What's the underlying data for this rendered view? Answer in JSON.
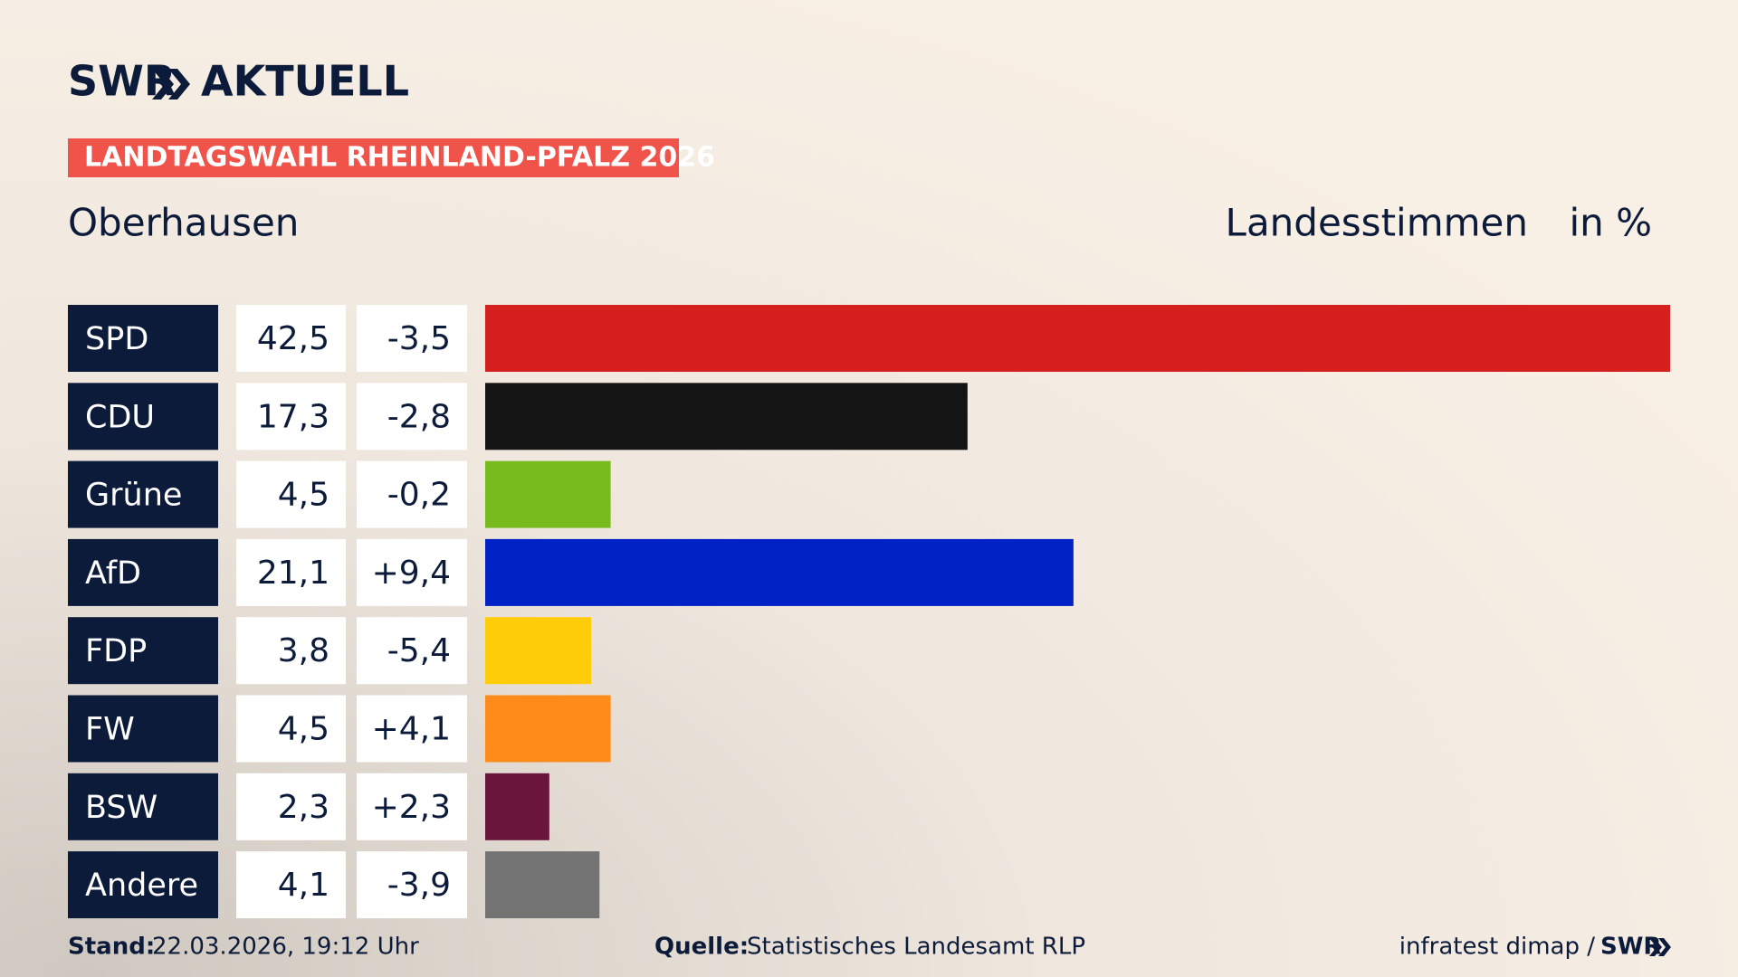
{
  "header": {
    "logo": "SWR",
    "brand": "AKTUELL"
  },
  "chart_data": {
    "type": "bar",
    "orientation": "horizontal",
    "title": "LANDTAGSWAHL RHEINLAND-PFALZ 2026",
    "subtitle": "Oberhausen",
    "measure": "Landesstimmen",
    "unit": "in %",
    "categories": [
      "SPD",
      "CDU",
      "Grüne",
      "AfD",
      "FDP",
      "FW",
      "BSW",
      "Andere"
    ],
    "values": [
      42.5,
      17.3,
      4.5,
      21.1,
      3.8,
      4.5,
      2.3,
      4.1
    ],
    "value_labels": [
      "42,5",
      "17,3",
      "4,5",
      "21,1",
      "3,8",
      "4,5",
      "2,3",
      "4,1"
    ],
    "changes": [
      -3.5,
      -2.8,
      -0.2,
      9.4,
      -5.4,
      4.1,
      2.3,
      -3.9
    ],
    "change_labels": [
      "-3,5",
      "-2,8",
      "-0,2",
      "+9,4",
      "-5,4",
      "+4,1",
      "+2,3",
      "-3,9"
    ],
    "colors": [
      "#d61f1f",
      "#141414",
      "#78bb1e",
      "#0021c4",
      "#ffcc0a",
      "#ff8c1a",
      "#6a163c",
      "#737373"
    ]
  },
  "footer": {
    "stand_label": "Stand:",
    "stand": "22.03.2026, 19:12 Uhr",
    "source_label": "Quelle:",
    "source": "Statistisches Landesamt RLP",
    "credit": "infratest dimap /",
    "credit_logo": "SWR"
  }
}
